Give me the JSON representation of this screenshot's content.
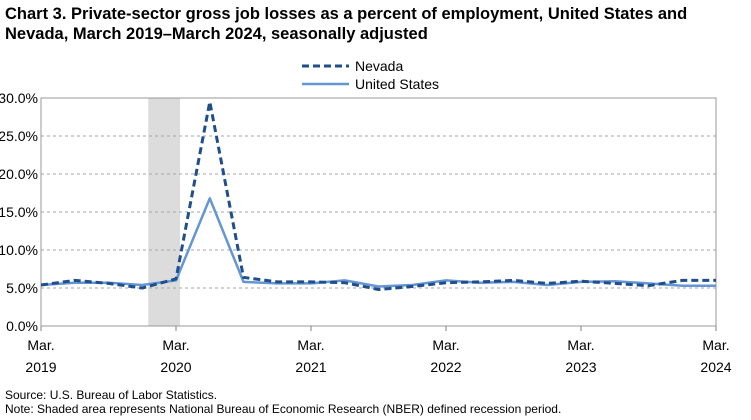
{
  "chart_data": {
    "type": "line",
    "title": "Chart 3. Private-sector gross job losses as a percent of employment, United States and Nevada, March 2019–March 2024, seasonally adjusted",
    "x": [
      "2019-03",
      "2019-06",
      "2019-09",
      "2019-12",
      "2020-03",
      "2020-06",
      "2020-09",
      "2020-12",
      "2021-03",
      "2021-06",
      "2021-09",
      "2021-12",
      "2022-03",
      "2022-06",
      "2022-09",
      "2022-12",
      "2023-03",
      "2023-06",
      "2023-09",
      "2023-12",
      "2024-03"
    ],
    "x_tick_labels": [
      {
        "month": "Mar.",
        "year": "2019"
      },
      {
        "month": "Mar.",
        "year": "2020"
      },
      {
        "month": "Mar.",
        "year": "2021"
      },
      {
        "month": "Mar.",
        "year": "2022"
      },
      {
        "month": "Mar.",
        "year": "2023"
      },
      {
        "month": "Mar.",
        "year": "2024"
      }
    ],
    "y_tick_labels": [
      "0.0%",
      "5.0%",
      "10.0%",
      "15.0%",
      "20.0%",
      "25.0%",
      "30.0%"
    ],
    "ylim": [
      0,
      30
    ],
    "yunit": "%",
    "grid": "horizontal dashed",
    "legend_position": "top-center",
    "recession_shading": {
      "from": "2019-12",
      "to": "2020-03",
      "color": "#dcdcdc"
    },
    "series": [
      {
        "name": "Nevada",
        "color": "#1f4e8c",
        "style": "dashed",
        "values": [
          5.4,
          6.0,
          5.6,
          5.0,
          6.2,
          29.5,
          6.4,
          5.8,
          5.8,
          5.7,
          4.8,
          5.2,
          5.7,
          5.8,
          6.0,
          5.6,
          5.9,
          5.6,
          5.3,
          6.0,
          6.0
        ]
      },
      {
        "name": "United States",
        "color": "#6495d4",
        "style": "solid",
        "values": [
          5.4,
          5.7,
          5.7,
          5.4,
          6.0,
          16.8,
          5.8,
          5.6,
          5.6,
          6.0,
          5.2,
          5.4,
          6.0,
          5.7,
          5.8,
          5.4,
          5.8,
          5.9,
          5.6,
          5.3,
          5.3
        ]
      }
    ]
  },
  "source_text": "Source: U.S. Bureau of Labor Statistics.",
  "note_text": "Note: Shaded area represents National Bureau of Economic Research (NBER) defined  recession period."
}
